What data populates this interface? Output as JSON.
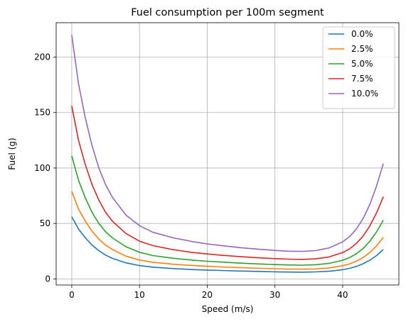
{
  "chart_data": {
    "type": "line",
    "title": "Fuel consumption per 100m segment",
    "xlabel": "Speed (m/s)",
    "ylabel": "Fuel (g)",
    "xlim": [
      -2.3,
      48.3
    ],
    "ylim": [
      -5.5,
      231
    ],
    "xticks": [
      0,
      10,
      20,
      30,
      40
    ],
    "yticks": [
      0,
      50,
      100,
      150,
      200
    ],
    "grid": true,
    "legend_position": "top-right",
    "series": [
      {
        "name": "0.0%",
        "color": "#1f77b4",
        "x": [
          0,
          1,
          2,
          3,
          4,
          5,
          6,
          8,
          10,
          12,
          15,
          18,
          20,
          22,
          25,
          28,
          30,
          32,
          34,
          36,
          38,
          40,
          41,
          42,
          43,
          44,
          45,
          46
        ],
        "y": [
          56,
          45,
          37,
          30.5,
          25.5,
          21.5,
          18.5,
          14.5,
          12,
          10.6,
          9.3,
          8.4,
          8,
          7.6,
          7.1,
          6.7,
          6.4,
          6.2,
          6.1,
          6.3,
          6.9,
          8.3,
          9.5,
          11.2,
          13.6,
          16.8,
          21,
          26.5
        ]
      },
      {
        "name": "2.5%",
        "color": "#ff7f0e",
        "x": [
          0,
          1,
          2,
          3,
          4,
          5,
          6,
          8,
          10,
          12,
          15,
          18,
          20,
          22,
          25,
          28,
          30,
          32,
          34,
          36,
          38,
          40,
          41,
          42,
          43,
          44,
          45,
          46
        ],
        "y": [
          79,
          63,
          52,
          43,
          36,
          30.5,
          26.5,
          20.5,
          17,
          15,
          13.2,
          12,
          11.4,
          10.8,
          10.1,
          9.5,
          9.2,
          8.9,
          8.8,
          9,
          9.9,
          11.9,
          13.5,
          15.9,
          19.2,
          23.8,
          29.8,
          37.5
        ]
      },
      {
        "name": "5.0%",
        "color": "#2ca02c",
        "x": [
          0,
          1,
          2,
          3,
          4,
          5,
          6,
          8,
          10,
          12,
          15,
          18,
          20,
          22,
          25,
          28,
          30,
          32,
          34,
          36,
          38,
          40,
          41,
          42,
          43,
          44,
          45,
          46
        ],
        "y": [
          111,
          89,
          73,
          60,
          50,
          42.5,
          37,
          29,
          24,
          21,
          18.6,
          16.8,
          15.9,
          15.2,
          14.2,
          13.4,
          12.9,
          12.6,
          12.4,
          12.8,
          14,
          16.8,
          19.2,
          22.6,
          27.3,
          33.8,
          42.4,
          53
        ]
      },
      {
        "name": "7.5%",
        "color": "#d62728",
        "x": [
          0,
          1,
          2,
          3,
          4,
          5,
          6,
          8,
          10,
          12,
          15,
          18,
          20,
          22,
          25,
          28,
          30,
          32,
          34,
          36,
          38,
          40,
          41,
          42,
          43,
          44,
          45,
          46
        ],
        "y": [
          156,
          125,
          103,
          85,
          71,
          60,
          52,
          41,
          34,
          30,
          26.3,
          23.7,
          22.5,
          21.4,
          20,
          18.9,
          18.3,
          17.8,
          17.6,
          18.1,
          19.8,
          23.7,
          27,
          31.8,
          38.5,
          47.6,
          59.5,
          74
        ]
      },
      {
        "name": "10.0%",
        "color": "#9467bd",
        "x": [
          0,
          1,
          2,
          3,
          4,
          5,
          6,
          8,
          10,
          12,
          15,
          18,
          20,
          22,
          25,
          28,
          30,
          32,
          34,
          36,
          38,
          40,
          41,
          42,
          43,
          44,
          45,
          46
        ],
        "y": [
          220,
          176,
          145,
          120,
          100,
          85,
          73.5,
          57.5,
          48,
          42,
          37,
          33.4,
          31.6,
          30.1,
          28.1,
          26.6,
          25.7,
          25,
          24.8,
          25.5,
          27.9,
          33.4,
          38.1,
          44.8,
          54.2,
          67,
          83.7,
          104
        ]
      }
    ]
  }
}
